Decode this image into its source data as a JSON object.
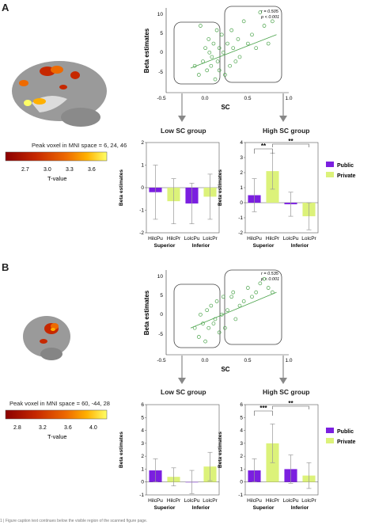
{
  "colors": {
    "public": "#7b1fe0",
    "private": "#dcf27a",
    "scatter": "#4aa34a",
    "heat": [
      "#8b0000",
      "#c62800",
      "#ee6a00",
      "#ffb000",
      "#ffff66"
    ]
  },
  "panels": [
    {
      "letter": "A",
      "brain_view": "sagittal-brain-render",
      "peak_voxel": "Peak voxel in MNI space = 6, 24, 46",
      "colorbar": {
        "ticks": [
          "2.7",
          "3.0",
          "3.3",
          "3.6"
        ],
        "label": "T-value"
      },
      "scatter": {
        "ylabel": "Beta estimates",
        "xlabel": "SC",
        "xticks": [
          "-0.5",
          "0.0",
          "0.5",
          "1.0"
        ],
        "yticks": [
          "10",
          "5",
          "0",
          "-5"
        ],
        "stats_r": "r = 0.505",
        "stats_p": "p < 0.001"
      },
      "low": {
        "title": "Low SC group",
        "ylabel": "Beta estimates",
        "yticks": [
          "2",
          "1",
          "0",
          "-1",
          "-2"
        ],
        "cats": [
          "HilcPu",
          "HilcPr",
          "LolcPu",
          "LolcPr"
        ],
        "groups": [
          "Superior",
          "Inferior"
        ]
      },
      "high": {
        "title": "High SC group",
        "ylabel": "Beta estimates",
        "yticks": [
          "4",
          "3",
          "2",
          "1",
          "0",
          "-1",
          "-2"
        ],
        "cats": [
          "HilcPu",
          "HilcPr",
          "LolcPu",
          "LolcPr"
        ],
        "groups": [
          "Superior",
          "Inferior"
        ],
        "sig1": "**",
        "sig2": "**"
      },
      "legend": [
        "Public",
        "Private"
      ]
    },
    {
      "letter": "B",
      "brain_view": "lateral-brain-render",
      "peak_voxel": "Peak voxel in MNI space = 60, -44, 28",
      "colorbar": {
        "ticks": [
          "2.8",
          "3.2",
          "3.6",
          "4.0"
        ],
        "label": "T-value"
      },
      "scatter": {
        "ylabel": "Beta estimates",
        "xlabel": "SC",
        "xticks": [
          "-0.5",
          "0.0",
          "0.5",
          "1.0"
        ],
        "yticks": [
          "10",
          "5",
          "0",
          "-5"
        ],
        "stats_r": "r = 0.535",
        "stats_p": "p < 0.001"
      },
      "low": {
        "title": "Low SC group",
        "ylabel": "Beta estimates",
        "yticks": [
          "6",
          "5",
          "4",
          "3",
          "2",
          "1",
          "0",
          "-1"
        ],
        "cats": [
          "HilcPu",
          "HilcPr",
          "LolcPu",
          "LolcPr"
        ],
        "groups": [
          "Superior",
          "Inferior"
        ]
      },
      "high": {
        "title": "High SC group",
        "ylabel": "Beta estimates",
        "yticks": [
          "6",
          "5",
          "4",
          "3",
          "2",
          "1",
          "0",
          "-1"
        ],
        "cats": [
          "HilcPu",
          "HilcPr",
          "LolcPu",
          "LolcPr"
        ],
        "groups": [
          "Superior",
          "Inferior"
        ],
        "sig1": "***",
        "sig2": "**"
      },
      "legend": [
        "Public",
        "Private"
      ]
    }
  ],
  "caption": "1 | Figure caption text continues below the visible region of the scanned figure page.",
  "chart_data": [
    {
      "type": "scatter",
      "panel": "A",
      "xlabel": "SC",
      "ylabel": "Beta estimates",
      "xlim": [
        -0.5,
        1.0
      ],
      "ylim": [
        -8,
        11
      ],
      "x": [
        -0.15,
        -0.1,
        -0.08,
        -0.05,
        -0.02,
        0.0,
        0.02,
        0.03,
        0.05,
        0.06,
        0.08,
        0.1,
        0.12,
        0.13,
        0.15,
        0.15,
        0.18,
        0.2,
        0.22,
        0.25,
        0.28,
        0.3,
        0.32,
        0.35,
        0.38,
        0.4,
        0.45,
        0.5,
        0.55,
        0.6,
        0.65,
        0.7,
        0.75,
        0.8
      ],
      "y": [
        -2,
        -4,
        7,
        -1,
        2,
        -3,
        4,
        1,
        -2,
        0,
        3,
        -5,
        6,
        -1,
        2,
        -3,
        5,
        1,
        -4,
        3,
        -2,
        6,
        2,
        -1,
        4,
        0,
        8,
        3,
        5,
        2,
        10,
        7,
        3,
        8
      ],
      "trend": {
        "x": [
          -0.2,
          0.85
        ],
        "y": [
          -2.5,
          5.0
        ]
      }
    },
    {
      "type": "bar",
      "panel": "A-low",
      "categories": [
        "HilcPu",
        "HilcPr",
        "LolcPu",
        "LolcPr"
      ],
      "series": [
        {
          "name": "Public",
          "values": [
            -0.2,
            null,
            -0.7,
            null
          ]
        },
        {
          "name": "Private",
          "values": [
            null,
            -0.6,
            null,
            -0.4
          ]
        }
      ],
      "errors": [
        1.2,
        1.0,
        0.9,
        1.0
      ],
      "ylabel": "Beta estimates",
      "ylim": [
        -2,
        2
      ]
    },
    {
      "type": "bar",
      "panel": "A-high",
      "categories": [
        "HilcPu",
        "HilcPr",
        "LolcPu",
        "LolcPr"
      ],
      "series": [
        {
          "name": "Public",
          "values": [
            0.5,
            null,
            -0.1,
            null
          ]
        },
        {
          "name": "Private",
          "values": [
            null,
            2.1,
            null,
            -0.9
          ]
        }
      ],
      "errors": [
        1.1,
        1.2,
        0.8,
        0.9
      ],
      "ylabel": "Beta estimates",
      "ylim": [
        -2,
        4
      ]
    },
    {
      "type": "scatter",
      "panel": "B",
      "xlabel": "SC",
      "ylabel": "Beta estimates",
      "xlim": [
        -0.5,
        1.0
      ],
      "ylim": [
        -8,
        11
      ],
      "x": [
        -0.15,
        -0.1,
        -0.08,
        -0.05,
        -0.02,
        0.0,
        0.02,
        0.05,
        0.08,
        0.1,
        0.12,
        0.15,
        0.18,
        0.2,
        0.22,
        0.25,
        0.3,
        0.32,
        0.35,
        0.4,
        0.45,
        0.5,
        0.55,
        0.6,
        0.65,
        0.7,
        0.75,
        0.8
      ],
      "y": [
        -2,
        -4,
        1,
        -1,
        -5,
        2,
        -2,
        3,
        -1,
        0,
        4,
        -3,
        1,
        5,
        -2,
        2,
        5,
        6,
        0,
        3,
        4,
        7,
        5,
        6,
        8,
        9,
        7,
        6
      ],
      "trend": {
        "x": [
          -0.2,
          0.85
        ],
        "y": [
          -2.0,
          6.0
        ]
      }
    },
    {
      "type": "bar",
      "panel": "B-low",
      "categories": [
        "HilcPu",
        "HilcPr",
        "LolcPu",
        "LolcPr"
      ],
      "series": [
        {
          "name": "Public",
          "values": [
            0.9,
            null,
            0.0,
            null
          ]
        },
        {
          "name": "Private",
          "values": [
            null,
            0.4,
            null,
            1.2
          ]
        }
      ],
      "errors": [
        0.9,
        0.7,
        0.9,
        1.1
      ],
      "ylabel": "Beta estimates",
      "ylim": [
        -1,
        6
      ]
    },
    {
      "type": "bar",
      "panel": "B-high",
      "categories": [
        "HilcPu",
        "HilcPr",
        "LolcPu",
        "LolcPr"
      ],
      "series": [
        {
          "name": "Public",
          "values": [
            0.9,
            null,
            1.0,
            null
          ]
        },
        {
          "name": "Private",
          "values": [
            null,
            3.0,
            null,
            0.5
          ]
        }
      ],
      "errors": [
        0.9,
        1.5,
        1.1,
        1.0
      ],
      "ylabel": "Beta estimates",
      "ylim": [
        -1,
        6
      ]
    }
  ]
}
